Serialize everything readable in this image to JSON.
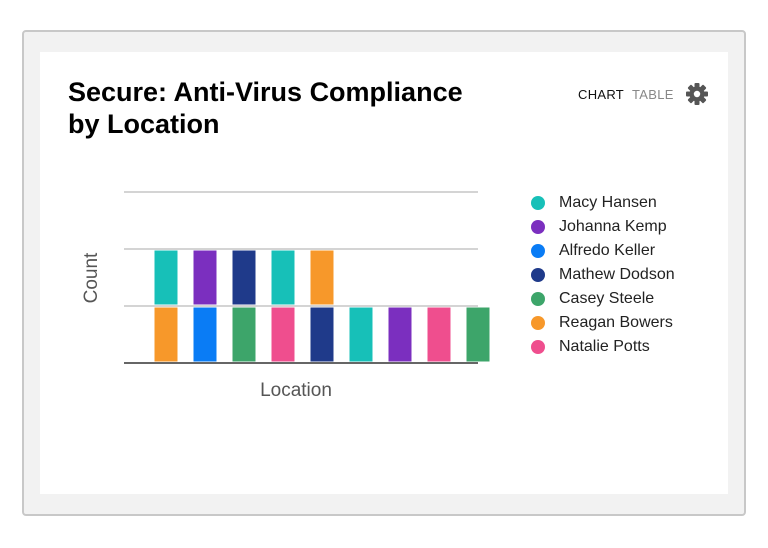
{
  "tabs": [
    "CHART",
    "TABLE"
  ],
  "chart_data": {
    "type": "bar",
    "stacked": true,
    "title": "Secure: Anti-Virus Compliance by Location",
    "x_label": "Location",
    "y_label": "Count",
    "categories": [
      null,
      null,
      null,
      null,
      null,
      null,
      null,
      null,
      null
    ],
    "series": [
      {
        "name": "Macy Hansen",
        "color": "#17c0b8",
        "values": [
          1,
          0,
          0,
          1,
          0,
          1,
          0,
          0,
          0
        ]
      },
      {
        "name": "Johanna Kemp",
        "color": "#7b2fbf",
        "values": [
          0,
          1,
          0,
          0,
          0,
          0,
          1,
          0,
          0
        ]
      },
      {
        "name": "Alfredo Keller",
        "color": "#0a7cf5",
        "values": [
          0,
          1,
          0,
          0,
          0,
          0,
          0,
          0,
          0
        ]
      },
      {
        "name": "Mathew Dodson",
        "color": "#1f3a8a",
        "values": [
          0,
          0,
          1,
          0,
          1,
          0,
          0,
          0,
          0
        ]
      },
      {
        "name": "Casey Steele",
        "color": "#3da56a",
        "values": [
          0,
          0,
          1,
          0,
          0,
          0,
          0,
          0,
          1
        ]
      },
      {
        "name": "Reagan Bowers",
        "color": "#f7982a",
        "values": [
          1,
          0,
          0,
          0,
          1,
          0,
          0,
          0,
          0
        ]
      },
      {
        "name": "Natalie Potts",
        "color": "#ef4e8e",
        "values": [
          0,
          0,
          0,
          1,
          0,
          0,
          0,
          1,
          0
        ]
      }
    ],
    "stack_order": [
      4,
      3,
      5,
      6,
      2,
      1,
      0
    ],
    "ylim": [
      0,
      3
    ],
    "yticks": [
      0,
      1,
      2,
      3
    ],
    "grid": true,
    "legend": "right"
  }
}
